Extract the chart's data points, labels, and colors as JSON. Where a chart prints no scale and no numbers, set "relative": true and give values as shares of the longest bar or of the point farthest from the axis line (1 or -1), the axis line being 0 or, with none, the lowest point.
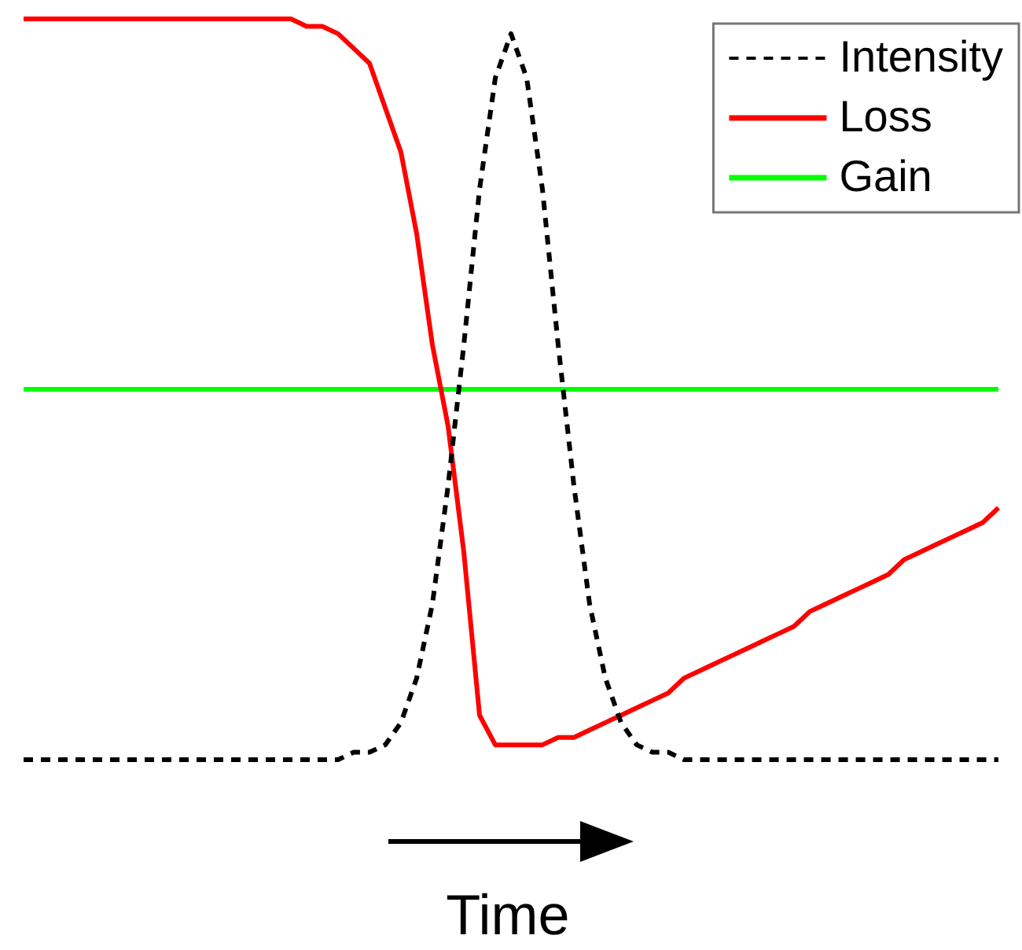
{
  "chart_data": {
    "type": "line",
    "relative": true,
    "xlabel": "Time",
    "legend": "top right",
    "marker": "none",
    "categories": [
      null,
      null,
      null,
      null,
      null,
      null,
      null,
      null,
      null,
      null,
      null,
      null,
      null,
      null,
      null,
      null,
      null,
      null,
      null,
      null,
      null,
      null,
      null,
      null,
      null,
      null,
      null,
      null,
      null,
      null,
      null,
      null,
      null,
      null,
      null,
      null,
      null,
      null,
      null,
      null,
      null,
      null,
      null,
      null,
      null,
      null,
      null,
      null,
      null,
      null,
      null,
      null,
      null,
      null,
      null,
      null,
      null,
      null,
      null,
      null,
      null,
      null,
      null
    ],
    "series": [
      {
        "name": "Intensity",
        "color": "#000000",
        "line_style": "dashed",
        "values": [
          0,
          0,
          0,
          0,
          0,
          0,
          0,
          0,
          0,
          0,
          0,
          0,
          0,
          0,
          0,
          0,
          0,
          0,
          0,
          0,
          0,
          0.01,
          0.01,
          0.02,
          0.05,
          0.11,
          0.21,
          0.37,
          0.56,
          0.77,
          0.92,
          0.98,
          0.92,
          0.77,
          0.56,
          0.37,
          0.21,
          0.11,
          0.05,
          0.02,
          0.01,
          0.01,
          0,
          0,
          0,
          0,
          0,
          0,
          0,
          0,
          0,
          0,
          0,
          0,
          0,
          0,
          0,
          0,
          0,
          0,
          0,
          0,
          0
        ]
      },
      {
        "name": "Loss",
        "color": "#ff0000",
        "line_style": "solid",
        "values": [
          1,
          1,
          1,
          1,
          1,
          1,
          1,
          1,
          1,
          1,
          1,
          1,
          1,
          1,
          1,
          1,
          1,
          1,
          0.99,
          0.99,
          0.98,
          0.96,
          0.94,
          0.88,
          0.82,
          0.71,
          0.56,
          0.45,
          0.28,
          0.06,
          0.02,
          0.02,
          0.02,
          0.02,
          0.03,
          0.03,
          0.04,
          0.05,
          0.06,
          0.07,
          0.08,
          0.09,
          0.11,
          0.12,
          0.13,
          0.14,
          0.15,
          0.16,
          0.17,
          0.18,
          0.2,
          0.21,
          0.22,
          0.23,
          0.24,
          0.25,
          0.27,
          0.28,
          0.29,
          0.3,
          0.31,
          0.32,
          0.34
        ]
      },
      {
        "name": "Gain",
        "color": "#00ff00",
        "line_style": "solid",
        "values": [
          0.5,
          0.5,
          0.5,
          0.5,
          0.5,
          0.5,
          0.5,
          0.5,
          0.5,
          0.5,
          0.5,
          0.5,
          0.5,
          0.5,
          0.5,
          0.5,
          0.5,
          0.5,
          0.5,
          0.5,
          0.5,
          0.5,
          0.5,
          0.5,
          0.5,
          0.5,
          0.5,
          0.5,
          0.5,
          0.5,
          0.5,
          0.5,
          0.5,
          0.5,
          0.5,
          0.5,
          0.5,
          0.5,
          0.5,
          0.5,
          0.5,
          0.5,
          0.5,
          0.5,
          0.5,
          0.5,
          0.5,
          0.5,
          0.5,
          0.5,
          0.5,
          0.5,
          0.5,
          0.5,
          0.5,
          0.5,
          0.5,
          0.5,
          0.5,
          0.5,
          0.5,
          0.5,
          0.5
        ]
      }
    ]
  }
}
